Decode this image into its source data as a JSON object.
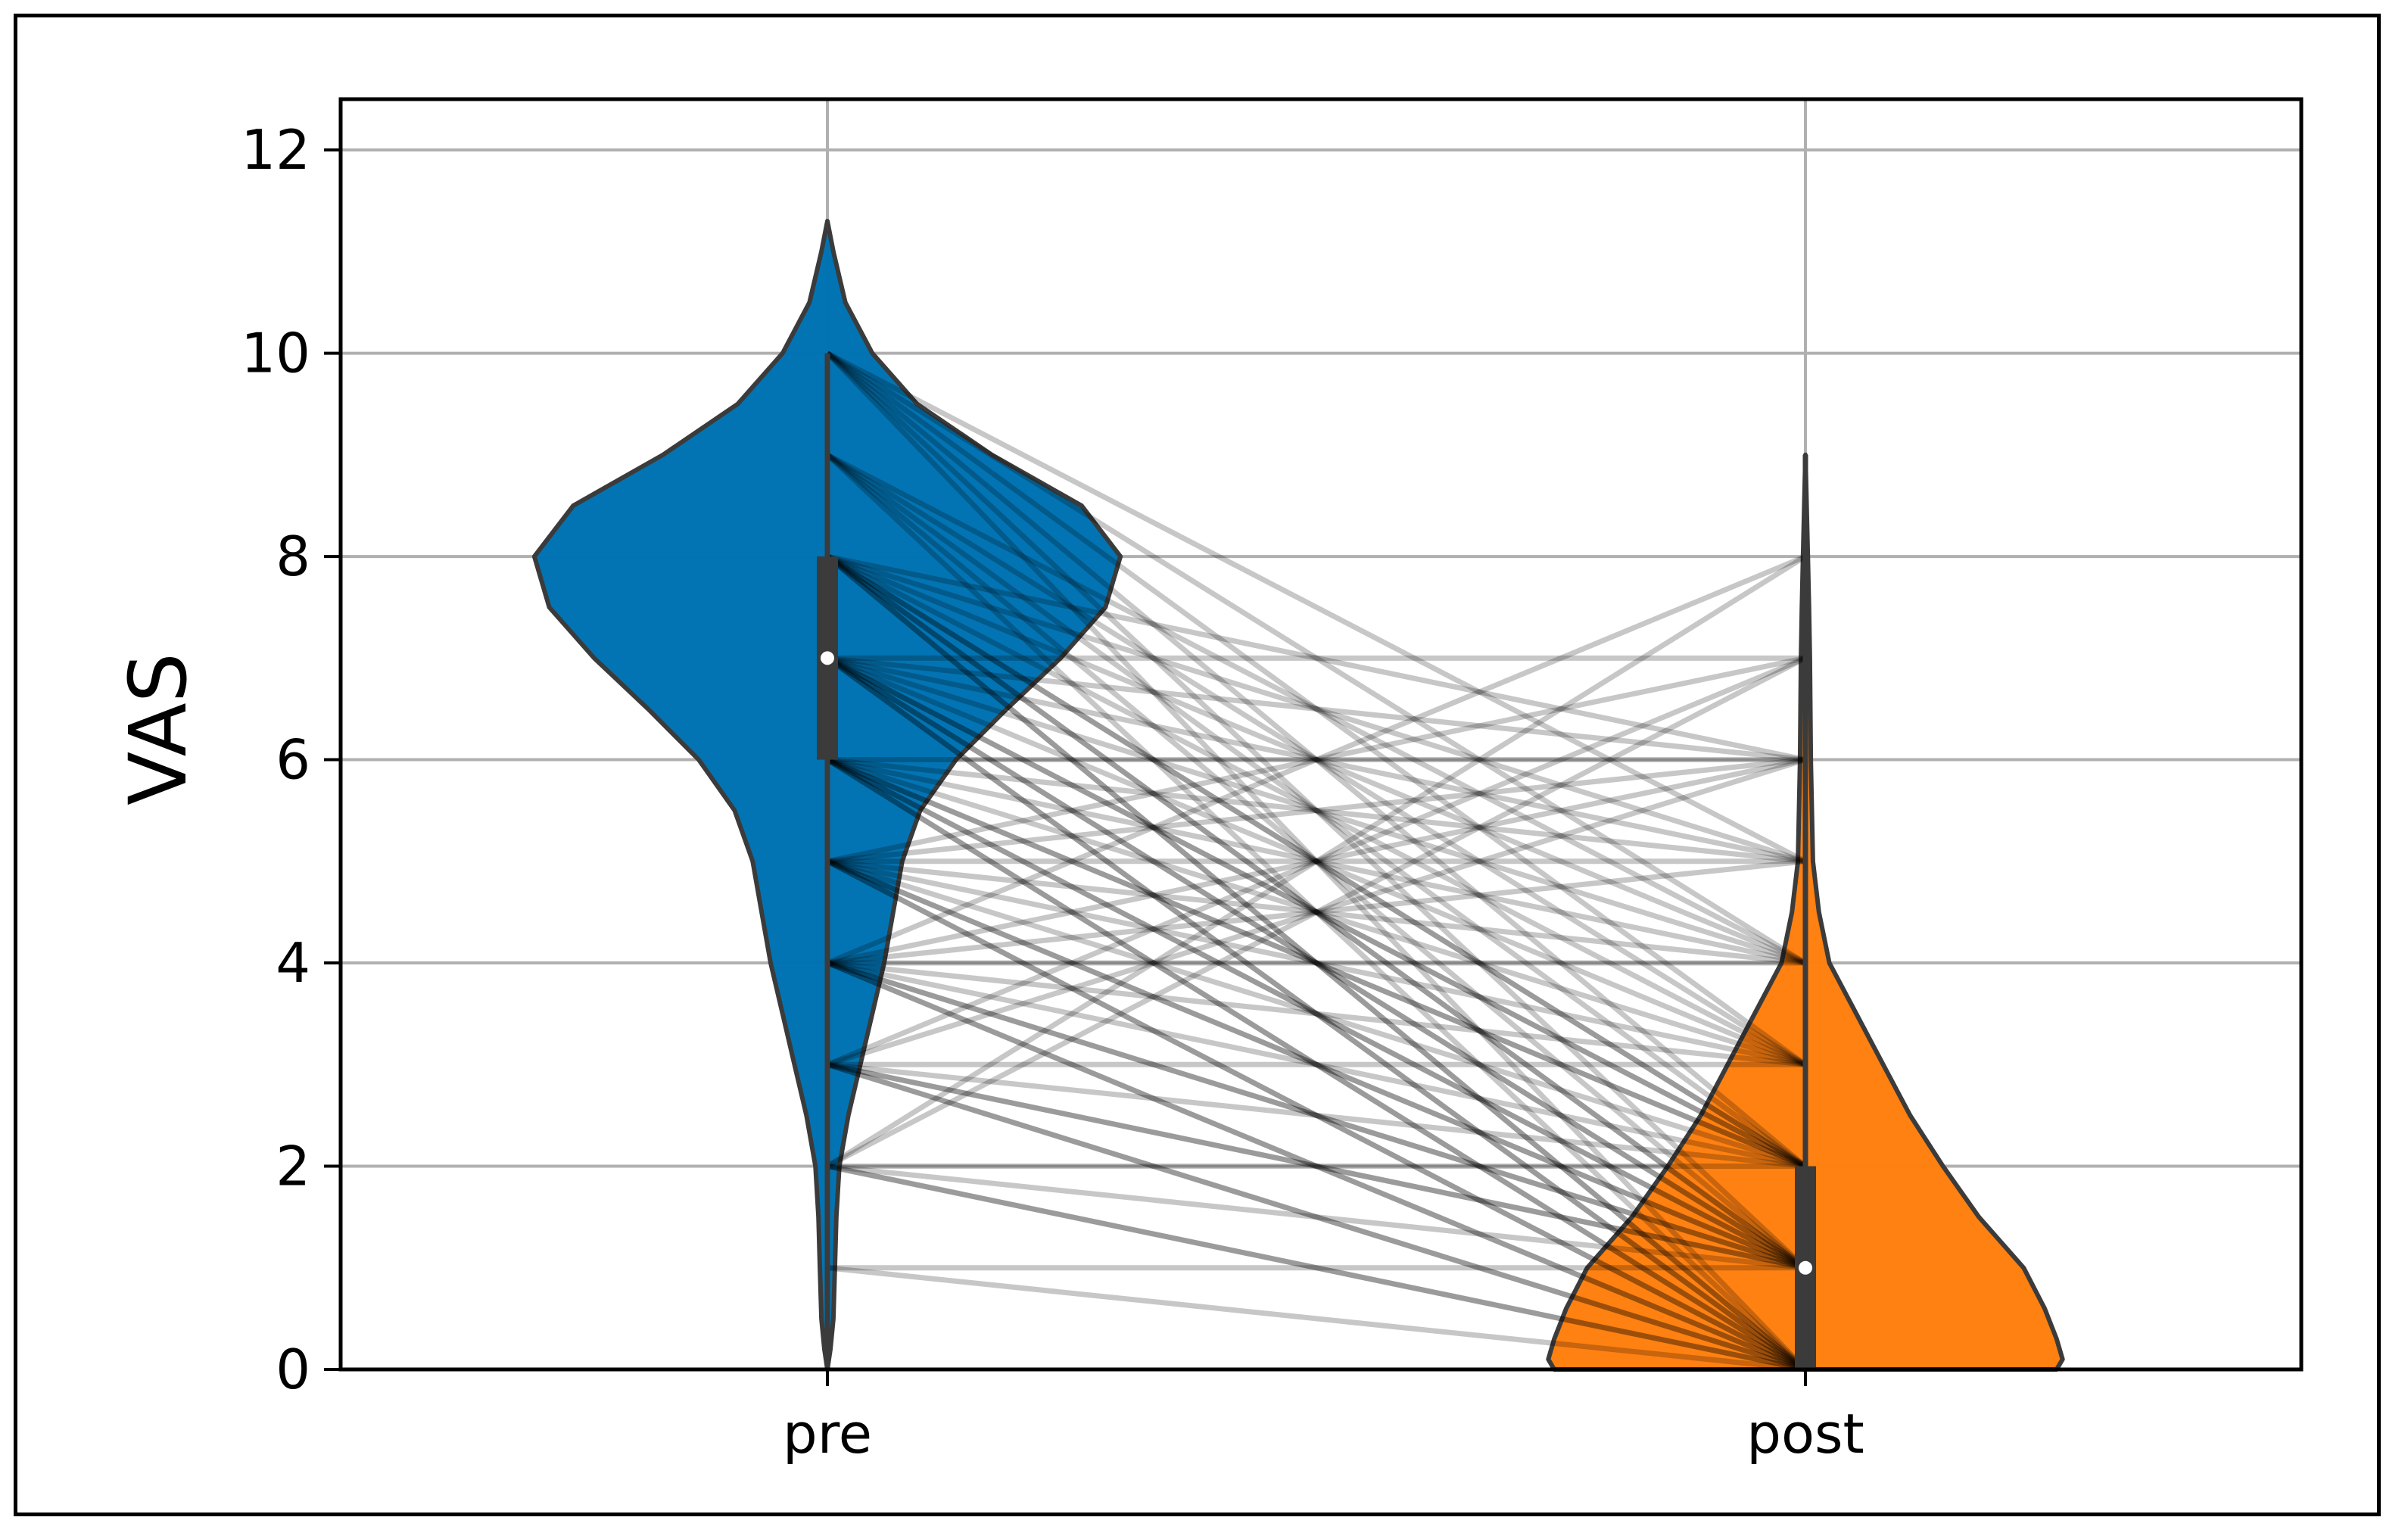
{
  "chart_data": {
    "type": "violin",
    "categories": [
      "pre",
      "post"
    ],
    "ylabel": "VAS",
    "xlabel": "",
    "ylim": [
      0,
      12.5
    ],
    "yticks": [
      "0",
      "2",
      "4",
      "6",
      "8",
      "10",
      "12"
    ],
    "grid": true,
    "colors": {
      "pre": "#0072b2",
      "post": "#ff7f0e"
    },
    "violins": [
      {
        "name": "pre",
        "median": 7,
        "quartiles": [
          6,
          8
        ],
        "range": [
          0,
          11.3
        ],
        "density": [
          [
            0,
            0.0
          ],
          [
            0.2,
            0.01
          ],
          [
            0.5,
            0.02
          ],
          [
            1,
            0.025
          ],
          [
            1.5,
            0.03
          ],
          [
            2,
            0.04
          ],
          [
            2.5,
            0.07
          ],
          [
            3,
            0.11
          ],
          [
            3.5,
            0.15
          ],
          [
            4,
            0.19
          ],
          [
            4.5,
            0.22
          ],
          [
            5,
            0.25
          ],
          [
            5.5,
            0.31
          ],
          [
            6,
            0.43
          ],
          [
            6.5,
            0.6
          ],
          [
            7,
            0.78
          ],
          [
            7.5,
            0.93
          ],
          [
            8,
            0.98
          ],
          [
            8.5,
            0.85
          ],
          [
            9,
            0.55
          ],
          [
            9.5,
            0.3
          ],
          [
            10,
            0.15
          ],
          [
            10.5,
            0.06
          ],
          [
            11,
            0.02
          ],
          [
            11.3,
            0.0
          ]
        ]
      },
      {
        "name": "post",
        "median": 1,
        "quartiles": [
          0,
          2
        ],
        "range": [
          0,
          9
        ],
        "density": [
          [
            0,
            0.84
          ],
          [
            0.1,
            0.86
          ],
          [
            0.3,
            0.84
          ],
          [
            0.6,
            0.8
          ],
          [
            1,
            0.73
          ],
          [
            1.5,
            0.58
          ],
          [
            2,
            0.46
          ],
          [
            2.5,
            0.35
          ],
          [
            3,
            0.26
          ],
          [
            3.5,
            0.17
          ],
          [
            4,
            0.08
          ],
          [
            4.5,
            0.045
          ],
          [
            5,
            0.025
          ],
          [
            6,
            0.018
          ],
          [
            7,
            0.015
          ],
          [
            7.5,
            0.012
          ],
          [
            8,
            0.008
          ],
          [
            8.5,
            0.004
          ],
          [
            9,
            0.0
          ]
        ]
      }
    ],
    "paired_lines": [
      [
        10,
        4
      ],
      [
        10,
        3
      ],
      [
        10,
        1
      ],
      [
        10,
        0
      ],
      [
        10,
        2
      ],
      [
        10,
        5
      ],
      [
        9,
        4
      ],
      [
        9,
        0
      ],
      [
        9,
        2
      ],
      [
        9,
        1
      ],
      [
        9,
        3
      ],
      [
        8,
        0
      ],
      [
        8,
        1
      ],
      [
        8,
        2
      ],
      [
        8,
        3
      ],
      [
        8,
        4
      ],
      [
        8,
        5
      ],
      [
        8,
        0
      ],
      [
        8,
        1
      ],
      [
        8,
        2
      ],
      [
        8,
        6
      ],
      [
        7,
        0
      ],
      [
        7,
        1
      ],
      [
        7,
        2
      ],
      [
        7,
        3
      ],
      [
        7,
        4
      ],
      [
        7,
        0
      ],
      [
        7,
        1
      ],
      [
        7,
        2
      ],
      [
        7,
        5
      ],
      [
        7,
        6
      ],
      [
        7,
        7
      ],
      [
        6,
        0
      ],
      [
        6,
        1
      ],
      [
        6,
        2
      ],
      [
        6,
        3
      ],
      [
        6,
        4
      ],
      [
        6,
        0
      ],
      [
        6,
        1
      ],
      [
        6,
        2
      ],
      [
        6,
        5
      ],
      [
        6,
        6
      ],
      [
        5,
        0
      ],
      [
        5,
        1
      ],
      [
        5,
        2
      ],
      [
        5,
        3
      ],
      [
        5,
        4
      ],
      [
        5,
        0
      ],
      [
        5,
        1
      ],
      [
        5,
        5
      ],
      [
        5,
        6
      ],
      [
        5,
        7
      ],
      [
        4,
        0
      ],
      [
        4,
        1
      ],
      [
        4,
        2
      ],
      [
        4,
        3
      ],
      [
        4,
        0
      ],
      [
        4,
        1
      ],
      [
        4,
        4
      ],
      [
        4,
        5
      ],
      [
        4,
        6
      ],
      [
        4,
        8
      ],
      [
        3,
        0
      ],
      [
        3,
        1
      ],
      [
        3,
        2
      ],
      [
        3,
        0
      ],
      [
        3,
        1
      ],
      [
        3,
        3
      ],
      [
        3,
        6
      ],
      [
        3,
        7
      ],
      [
        2,
        0
      ],
      [
        2,
        1
      ],
      [
        2,
        0
      ],
      [
        2,
        2
      ],
      [
        2,
        7
      ],
      [
        2,
        8
      ],
      [
        1,
        0
      ],
      [
        1,
        1
      ]
    ]
  }
}
